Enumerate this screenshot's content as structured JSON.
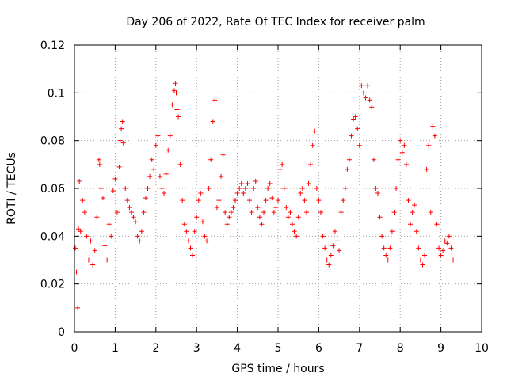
{
  "chart_data": {
    "type": "scatter",
    "title": "Day 206 of 2022, Rate Of TEC Index for receiver palm",
    "xlabel": "GPS time / hours",
    "ylabel": "ROTI / TECUs",
    "xlim": [
      0,
      10
    ],
    "ylim": [
      0,
      0.12
    ],
    "x_ticks": [
      0,
      1,
      2,
      3,
      4,
      5,
      6,
      7,
      8,
      9,
      10
    ],
    "x_tick_labels": [
      "0",
      "1",
      "2",
      "3",
      "4",
      "5",
      "6",
      "7",
      "8",
      "9",
      "10"
    ],
    "y_ticks": [
      0,
      0.02,
      0.04,
      0.06,
      0.08,
      0.1,
      0.12
    ],
    "y_tick_labels": [
      "0",
      "0.02",
      "0.04",
      "0.06",
      "0.08",
      "0.1",
      "0.12"
    ],
    "grid": true,
    "marker": "+",
    "color": "#ff0000",
    "series": [
      {
        "name": "ROTI",
        "points": [
          [
            0.02,
            0.035
          ],
          [
            0.05,
            0.025
          ],
          [
            0.08,
            0.01
          ],
          [
            0.1,
            0.043
          ],
          [
            0.12,
            0.063
          ],
          [
            0.15,
            0.042
          ],
          [
            0.2,
            0.055
          ],
          [
            0.25,
            0.05
          ],
          [
            0.3,
            0.04
          ],
          [
            0.35,
            0.03
          ],
          [
            0.4,
            0.038
          ],
          [
            0.45,
            0.028
          ],
          [
            0.5,
            0.034
          ],
          [
            0.55,
            0.048
          ],
          [
            0.6,
            0.072
          ],
          [
            0.62,
            0.07
          ],
          [
            0.65,
            0.06
          ],
          [
            0.7,
            0.056
          ],
          [
            0.75,
            0.036
          ],
          [
            0.8,
            0.03
          ],
          [
            0.85,
            0.045
          ],
          [
            0.9,
            0.04
          ],
          [
            0.95,
            0.059
          ],
          [
            1.0,
            0.064
          ],
          [
            1.05,
            0.05
          ],
          [
            1.1,
            0.069
          ],
          [
            1.12,
            0.08
          ],
          [
            1.15,
            0.085
          ],
          [
            1.18,
            0.088
          ],
          [
            1.2,
            0.079
          ],
          [
            1.25,
            0.06
          ],
          [
            1.3,
            0.055
          ],
          [
            1.35,
            0.052
          ],
          [
            1.4,
            0.05
          ],
          [
            1.45,
            0.048
          ],
          [
            1.5,
            0.046
          ],
          [
            1.55,
            0.04
          ],
          [
            1.6,
            0.038
          ],
          [
            1.65,
            0.042
          ],
          [
            1.7,
            0.05
          ],
          [
            1.75,
            0.056
          ],
          [
            1.8,
            0.06
          ],
          [
            1.85,
            0.065
          ],
          [
            1.9,
            0.072
          ],
          [
            1.95,
            0.068
          ],
          [
            2.0,
            0.078
          ],
          [
            2.05,
            0.082
          ],
          [
            2.1,
            0.065
          ],
          [
            2.15,
            0.06
          ],
          [
            2.2,
            0.058
          ],
          [
            2.25,
            0.066
          ],
          [
            2.3,
            0.076
          ],
          [
            2.35,
            0.082
          ],
          [
            2.4,
            0.095
          ],
          [
            2.45,
            0.101
          ],
          [
            2.48,
            0.104
          ],
          [
            2.5,
            0.1
          ],
          [
            2.52,
            0.093
          ],
          [
            2.55,
            0.09
          ],
          [
            2.6,
            0.07
          ],
          [
            2.65,
            0.055
          ],
          [
            2.7,
            0.045
          ],
          [
            2.75,
            0.042
          ],
          [
            2.8,
            0.038
          ],
          [
            2.85,
            0.035
          ],
          [
            2.9,
            0.032
          ],
          [
            2.95,
            0.042
          ],
          [
            3.0,
            0.048
          ],
          [
            3.05,
            0.055
          ],
          [
            3.1,
            0.058
          ],
          [
            3.15,
            0.046
          ],
          [
            3.2,
            0.04
          ],
          [
            3.25,
            0.038
          ],
          [
            3.3,
            0.06
          ],
          [
            3.35,
            0.072
          ],
          [
            3.4,
            0.088
          ],
          [
            3.45,
            0.097
          ],
          [
            3.5,
            0.052
          ],
          [
            3.55,
            0.055
          ],
          [
            3.6,
            0.065
          ],
          [
            3.65,
            0.074
          ],
          [
            3.7,
            0.05
          ],
          [
            3.75,
            0.045
          ],
          [
            3.8,
            0.048
          ],
          [
            3.85,
            0.05
          ],
          [
            3.9,
            0.052
          ],
          [
            3.95,
            0.055
          ],
          [
            4.0,
            0.058
          ],
          [
            4.05,
            0.06
          ],
          [
            4.1,
            0.062
          ],
          [
            4.15,
            0.058
          ],
          [
            4.2,
            0.06
          ],
          [
            4.25,
            0.062
          ],
          [
            4.3,
            0.055
          ],
          [
            4.35,
            0.05
          ],
          [
            4.4,
            0.06
          ],
          [
            4.45,
            0.063
          ],
          [
            4.5,
            0.052
          ],
          [
            4.55,
            0.048
          ],
          [
            4.6,
            0.045
          ],
          [
            4.65,
            0.05
          ],
          [
            4.7,
            0.055
          ],
          [
            4.75,
            0.06
          ],
          [
            4.8,
            0.062
          ],
          [
            4.85,
            0.056
          ],
          [
            4.9,
            0.05
          ],
          [
            4.95,
            0.052
          ],
          [
            5.0,
            0.055
          ],
          [
            5.05,
            0.068
          ],
          [
            5.1,
            0.07
          ],
          [
            5.15,
            0.06
          ],
          [
            5.2,
            0.052
          ],
          [
            5.25,
            0.048
          ],
          [
            5.3,
            0.05
          ],
          [
            5.35,
            0.045
          ],
          [
            5.4,
            0.042
          ],
          [
            5.45,
            0.04
          ],
          [
            5.5,
            0.048
          ],
          [
            5.55,
            0.058
          ],
          [
            5.6,
            0.06
          ],
          [
            5.65,
            0.055
          ],
          [
            5.7,
            0.05
          ],
          [
            5.75,
            0.062
          ],
          [
            5.8,
            0.07
          ],
          [
            5.85,
            0.078
          ],
          [
            5.9,
            0.084
          ],
          [
            5.95,
            0.06
          ],
          [
            6.0,
            0.055
          ],
          [
            6.05,
            0.05
          ],
          [
            6.1,
            0.04
          ],
          [
            6.15,
            0.035
          ],
          [
            6.2,
            0.03
          ],
          [
            6.25,
            0.028
          ],
          [
            6.3,
            0.032
          ],
          [
            6.35,
            0.036
          ],
          [
            6.4,
            0.042
          ],
          [
            6.45,
            0.038
          ],
          [
            6.5,
            0.034
          ],
          [
            6.55,
            0.05
          ],
          [
            6.6,
            0.055
          ],
          [
            6.65,
            0.06
          ],
          [
            6.7,
            0.068
          ],
          [
            6.75,
            0.072
          ],
          [
            6.8,
            0.082
          ],
          [
            6.85,
            0.089
          ],
          [
            6.9,
            0.09
          ],
          [
            6.95,
            0.085
          ],
          [
            7.0,
            0.078
          ],
          [
            7.05,
            0.103
          ],
          [
            7.1,
            0.1
          ],
          [
            7.15,
            0.098
          ],
          [
            7.2,
            0.103
          ],
          [
            7.25,
            0.097
          ],
          [
            7.3,
            0.094
          ],
          [
            7.35,
            0.072
          ],
          [
            7.4,
            0.06
          ],
          [
            7.45,
            0.058
          ],
          [
            7.5,
            0.048
          ],
          [
            7.55,
            0.04
          ],
          [
            7.6,
            0.035
          ],
          [
            7.65,
            0.032
          ],
          [
            7.7,
            0.03
          ],
          [
            7.75,
            0.035
          ],
          [
            7.8,
            0.042
          ],
          [
            7.85,
            0.05
          ],
          [
            7.9,
            0.06
          ],
          [
            7.95,
            0.072
          ],
          [
            8.0,
            0.08
          ],
          [
            8.05,
            0.075
          ],
          [
            8.1,
            0.078
          ],
          [
            8.15,
            0.07
          ],
          [
            8.2,
            0.055
          ],
          [
            8.25,
            0.045
          ],
          [
            8.3,
            0.05
          ],
          [
            8.35,
            0.053
          ],
          [
            8.4,
            0.042
          ],
          [
            8.45,
            0.035
          ],
          [
            8.5,
            0.03
          ],
          [
            8.55,
            0.028
          ],
          [
            8.6,
            0.032
          ],
          [
            8.65,
            0.068
          ],
          [
            8.7,
            0.078
          ],
          [
            8.75,
            0.05
          ],
          [
            8.8,
            0.086
          ],
          [
            8.85,
            0.082
          ],
          [
            8.9,
            0.045
          ],
          [
            8.95,
            0.035
          ],
          [
            9.0,
            0.032
          ],
          [
            9.05,
            0.034
          ],
          [
            9.1,
            0.038
          ],
          [
            9.15,
            0.037
          ],
          [
            9.2,
            0.04
          ],
          [
            9.25,
            0.035
          ],
          [
            9.3,
            0.03
          ]
        ]
      }
    ]
  }
}
